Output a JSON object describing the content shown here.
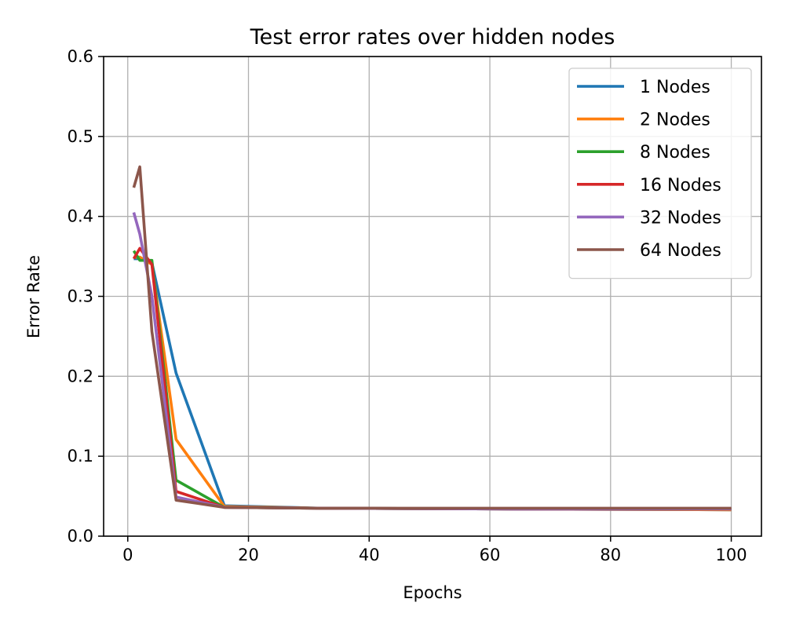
{
  "chart_data": {
    "type": "line",
    "title": "Test error rates over hidden nodes",
    "xlabel": "Epochs",
    "ylabel": "Error Rate",
    "xlim": [
      -4,
      105
    ],
    "ylim": [
      0,
      0.6
    ],
    "xticks": [
      0,
      20,
      40,
      60,
      80,
      100
    ],
    "xtick_labels": [
      "0",
      "20",
      "40",
      "60",
      "80",
      "100"
    ],
    "yticks": [
      0,
      0.1,
      0.2,
      0.3,
      0.4,
      0.5,
      0.6
    ],
    "ytick_labels": [
      "0.0",
      "0.1",
      "0.2",
      "0.3",
      "0.4",
      "0.5",
      "0.6"
    ],
    "grid": true,
    "legend_position": "top-right",
    "x": [
      1,
      2,
      4,
      8,
      16,
      32,
      64,
      100
    ],
    "series": [
      {
        "name": "1 Nodes",
        "color": "#1f77b4",
        "values": [
          0.347,
          0.347,
          0.342,
          0.204,
          0.038,
          0.035,
          0.034,
          0.033
        ]
      },
      {
        "name": "2 Nodes",
        "color": "#ff7f0e",
        "values": [
          0.349,
          0.349,
          0.34,
          0.121,
          0.037,
          0.035,
          0.034,
          0.033
        ]
      },
      {
        "name": "8 Nodes",
        "color": "#2ca02c",
        "values": [
          0.357,
          0.345,
          0.345,
          0.07,
          0.036,
          0.035,
          0.034,
          0.034
        ]
      },
      {
        "name": "16 Nodes",
        "color": "#d62728",
        "values": [
          0.347,
          0.36,
          0.34,
          0.056,
          0.036,
          0.035,
          0.034,
          0.034
        ]
      },
      {
        "name": "32 Nodes",
        "color": "#9467bd",
        "values": [
          0.405,
          0.378,
          0.3,
          0.049,
          0.036,
          0.035,
          0.034,
          0.034
        ]
      },
      {
        "name": "64 Nodes",
        "color": "#8c564b",
        "values": [
          0.436,
          0.462,
          0.256,
          0.045,
          0.036,
          0.035,
          0.035,
          0.035
        ]
      }
    ]
  }
}
